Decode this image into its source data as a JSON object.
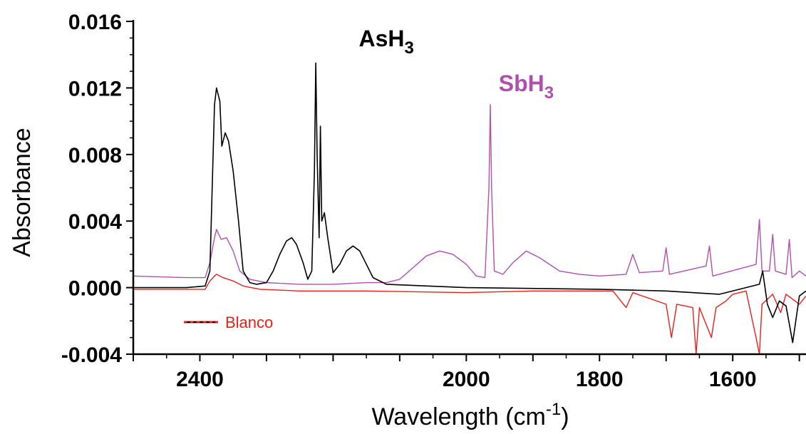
{
  "chart_data": {
    "type": "line",
    "title": "",
    "xlabel": "Wavelength (cm",
    "xlabel_sup": "-1",
    "xlabel_close": ")",
    "ylabel": "Absorbance",
    "xlim": [
      2500,
      1490
    ],
    "ylim": [
      -0.004,
      0.016
    ],
    "x_reversed": true,
    "grid": false,
    "y_ticks": [
      -0.004,
      0.0,
      0.004,
      0.008,
      0.012,
      0.016
    ],
    "y_tick_labels": [
      "-0.004",
      "0.000",
      "0.004",
      "0.008",
      "0.012",
      "0.016"
    ],
    "x_ticks": [
      2400,
      2000,
      1800,
      1600
    ],
    "x_tick_labels": [
      "2400",
      "2000",
      "1800",
      "1600"
    ],
    "annotations": [
      {
        "text": "AsH",
        "sub": "3",
        "color": "#000000",
        "x": 2120,
        "y": 0.0145
      },
      {
        "text": "SbH",
        "sub": "3",
        "color": "#b04fb0",
        "x": 1910,
        "y": 0.0118
      }
    ],
    "legend": {
      "position": "bottom-left",
      "entries": [
        {
          "label": "Blanco",
          "color": "#e8201a"
        }
      ]
    },
    "series": [
      {
        "key": "ash3",
        "color": "#000000",
        "points": [
          [
            2500,
            0.0
          ],
          [
            2420,
            0.0
          ],
          [
            2392,
            0.0001
          ],
          [
            2385,
            0.001
          ],
          [
            2378,
            0.011
          ],
          [
            2375,
            0.012
          ],
          [
            2370,
            0.0112
          ],
          [
            2367,
            0.0085
          ],
          [
            2362,
            0.0093
          ],
          [
            2357,
            0.0088
          ],
          [
            2350,
            0.007
          ],
          [
            2342,
            0.004
          ],
          [
            2335,
            0.001
          ],
          [
            2325,
            0.0003
          ],
          [
            2315,
            0.0002
          ],
          [
            2300,
            0.0003
          ],
          [
            2290,
            0.001
          ],
          [
            2280,
            0.002
          ],
          [
            2270,
            0.0028
          ],
          [
            2262,
            0.003
          ],
          [
            2255,
            0.0026
          ],
          [
            2245,
            0.0015
          ],
          [
            2238,
            0.0005
          ],
          [
            2232,
            0.001
          ],
          [
            2228,
            0.007
          ],
          [
            2226,
            0.0135
          ],
          [
            2224,
            0.008
          ],
          [
            2221,
            0.003
          ],
          [
            2219,
            0.0097
          ],
          [
            2217,
            0.004
          ],
          [
            2213,
            0.0045
          ],
          [
            2208,
            0.003
          ],
          [
            2200,
            0.0009
          ],
          [
            2190,
            0.0014
          ],
          [
            2180,
            0.0022
          ],
          [
            2170,
            0.0025
          ],
          [
            2160,
            0.0022
          ],
          [
            2150,
            0.0014
          ],
          [
            2140,
            0.0006
          ],
          [
            2120,
            0.0002
          ],
          [
            2000,
            0.0
          ],
          [
            1800,
            -0.0001
          ],
          [
            1700,
            -0.0002
          ],
          [
            1620,
            -0.0004
          ],
          [
            1560,
            0.0002
          ],
          [
            1555,
            0.001
          ],
          [
            1548,
            -0.001
          ],
          [
            1540,
            -0.0018
          ],
          [
            1530,
            -0.0008
          ],
          [
            1520,
            -0.0011
          ],
          [
            1510,
            -0.0033
          ],
          [
            1500,
            -0.0005
          ],
          [
            1490,
            -0.0002
          ]
        ]
      },
      {
        "key": "sbh3",
        "color": "#b04fb0",
        "points": [
          [
            2500,
            0.0007
          ],
          [
            2420,
            0.0006
          ],
          [
            2392,
            0.0006
          ],
          [
            2385,
            0.0015
          ],
          [
            2378,
            0.003
          ],
          [
            2375,
            0.0035
          ],
          [
            2368,
            0.0029
          ],
          [
            2360,
            0.003
          ],
          [
            2350,
            0.0022
          ],
          [
            2340,
            0.001
          ],
          [
            2325,
            0.0005
          ],
          [
            2300,
            0.0003
          ],
          [
            2250,
            0.0002
          ],
          [
            2200,
            0.0002
          ],
          [
            2150,
            0.0003
          ],
          [
            2120,
            0.0003
          ],
          [
            2100,
            0.0005
          ],
          [
            2080,
            0.0012
          ],
          [
            2060,
            0.0019
          ],
          [
            2040,
            0.0022
          ],
          [
            2020,
            0.002
          ],
          [
            2000,
            0.0014
          ],
          [
            1985,
            0.0007
          ],
          [
            1972,
            0.0006
          ],
          [
            1966,
            0.006
          ],
          [
            1964,
            0.011
          ],
          [
            1962,
            0.006
          ],
          [
            1958,
            0.001
          ],
          [
            1945,
            0.0008
          ],
          [
            1930,
            0.0015
          ],
          [
            1910,
            0.0022
          ],
          [
            1890,
            0.0018
          ],
          [
            1860,
            0.001
          ],
          [
            1830,
            0.0008
          ],
          [
            1800,
            0.0007
          ],
          [
            1760,
            0.0008
          ],
          [
            1750,
            0.002
          ],
          [
            1740,
            0.0009
          ],
          [
            1705,
            0.001
          ],
          [
            1700,
            0.0024
          ],
          [
            1695,
            0.0008
          ],
          [
            1640,
            0.0013
          ],
          [
            1635,
            0.0025
          ],
          [
            1630,
            0.0007
          ],
          [
            1565,
            0.0014
          ],
          [
            1560,
            0.0041
          ],
          [
            1556,
            0.001
          ],
          [
            1545,
            0.001
          ],
          [
            1540,
            0.0032
          ],
          [
            1536,
            0.001
          ],
          [
            1520,
            0.0008
          ],
          [
            1515,
            0.0029
          ],
          [
            1511,
            0.0006
          ],
          [
            1500,
            0.001
          ],
          [
            1490,
            0.0007
          ]
        ]
      },
      {
        "key": "blanco",
        "color": "#e8201a",
        "points": [
          [
            2500,
            -0.0001
          ],
          [
            2420,
            -0.0001
          ],
          [
            2392,
            -0.0001
          ],
          [
            2385,
            0.0004
          ],
          [
            2378,
            0.0007
          ],
          [
            2375,
            0.0008
          ],
          [
            2365,
            0.0006
          ],
          [
            2350,
            0.0004
          ],
          [
            2335,
            0.0001
          ],
          [
            2310,
            -0.0001
          ],
          [
            2250,
            -0.0002
          ],
          [
            2150,
            -0.0002
          ],
          [
            2000,
            -0.0003
          ],
          [
            1900,
            -0.0002
          ],
          [
            1850,
            -0.0002
          ],
          [
            1780,
            -0.0002
          ],
          [
            1760,
            -0.0012
          ],
          [
            1750,
            -0.0003
          ],
          [
            1700,
            -0.001
          ],
          [
            1692,
            -0.003
          ],
          [
            1684,
            -0.001
          ],
          [
            1660,
            -0.0012
          ],
          [
            1655,
            -0.004
          ],
          [
            1650,
            -0.0012
          ],
          [
            1640,
            -0.0022
          ],
          [
            1632,
            -0.003
          ],
          [
            1625,
            -0.0012
          ],
          [
            1610,
            -0.0008
          ],
          [
            1600,
            -0.0004
          ],
          [
            1580,
            -0.0002
          ],
          [
            1565,
            -0.003
          ],
          [
            1560,
            -0.004
          ],
          [
            1556,
            -0.001
          ],
          [
            1540,
            -0.0004
          ],
          [
            1528,
            -0.0015
          ],
          [
            1520,
            -0.0004
          ],
          [
            1500,
            -0.001
          ],
          [
            1490,
            -0.0005
          ]
        ]
      }
    ]
  }
}
